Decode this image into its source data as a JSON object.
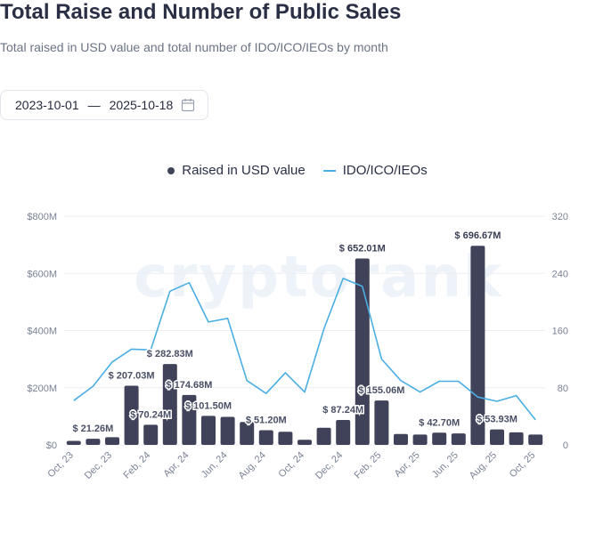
{
  "header": {
    "title": "Total Raise and Number of Public Sales",
    "subtitle": "Total raised in USD value and total number of IDO/ICO/IEOs by month"
  },
  "date_range": {
    "start": "2023-10-01",
    "separator": "—",
    "end": "2025-10-18",
    "icon": "calendar-icon"
  },
  "watermark": "cryptorank",
  "colors": {
    "bar": "#3f4259",
    "line": "#4aaee3",
    "grid": "#eceef2",
    "axis_text": "#7a8296"
  },
  "chart_data": {
    "type": "bar",
    "title": "Total Raise and Number of Public Sales",
    "legend": [
      "Raised in USD value",
      "IDO/ICO/IEOs"
    ],
    "legend_position": "top-center",
    "categories": [
      "Oct, 23",
      "Nov, 23",
      "Dec, 23",
      "Jan, 24",
      "Feb, 24",
      "Mar, 24",
      "Apr, 24",
      "May, 24",
      "Jun, 24",
      "Jul, 24",
      "Aug, 24",
      "Sep, 24",
      "Oct, 24",
      "Nov, 24",
      "Dec, 24",
      "Jan, 25",
      "Feb, 25",
      "Mar, 25",
      "Apr, 25",
      "May, 25",
      "Jun, 25",
      "Jul, 25",
      "Aug, 25",
      "Sep, 25",
      "Oct, 25"
    ],
    "x_tick_labels": [
      "Oct, 23",
      "Dec, 23",
      "Feb, 24",
      "Apr, 24",
      "Jun, 24",
      "Aug, 24",
      "Oct, 24",
      "Dec, 24",
      "Feb, 25",
      "Apr, 25",
      "Jun, 25",
      "Aug, 25",
      "Oct, 25"
    ],
    "series": [
      {
        "name": "Raised in USD value",
        "type": "bar",
        "axis": "left",
        "values": [
          14,
          21.26,
          27,
          207.03,
          70.24,
          282.83,
          174.68,
          101.5,
          98,
          80,
          51.2,
          46,
          18,
          60,
          87.24,
          652.01,
          155.06,
          38,
          36,
          42.7,
          40,
          696.67,
          53.93,
          44,
          36
        ],
        "labels": [
          "",
          "$ 21.26M",
          "",
          "$ 207.03M",
          "$ 70.24M",
          "$ 282.83M",
          "$ 174.68M",
          "$ 101.50M",
          "",
          "",
          "$ 51.20M",
          "",
          "",
          "",
          "$ 87.24M",
          "$ 652.01M",
          "$ 155.06M",
          "",
          "",
          "$ 42.70M",
          "",
          "$ 696.67M",
          "$ 53.93M",
          "",
          ""
        ]
      },
      {
        "name": "IDO/ICO/IEOs",
        "type": "line",
        "axis": "right",
        "values": [
          62,
          82,
          116,
          134,
          133,
          215,
          227,
          172,
          177,
          90,
          72,
          101,
          74,
          162,
          233,
          222,
          120,
          90,
          74,
          89,
          89,
          67,
          61,
          69,
          35
        ]
      }
    ],
    "y_left": {
      "ylim": [
        0,
        800
      ],
      "ticks": [
        "$0",
        "$200M",
        "$400M",
        "$600M",
        "$800M"
      ],
      "tick_values": [
        0,
        200,
        400,
        600,
        800
      ]
    },
    "y_right": {
      "ylim": [
        0,
        320
      ],
      "ticks": [
        "0",
        "80",
        "160",
        "240",
        "320"
      ],
      "tick_values": [
        0,
        80,
        160,
        240,
        320
      ]
    },
    "grid": true
  }
}
